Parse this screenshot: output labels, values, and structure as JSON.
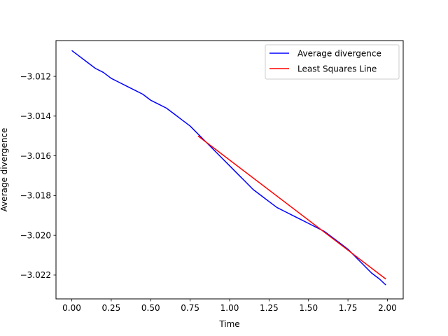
{
  "chart_data": {
    "type": "line",
    "title": "",
    "xlabel": "Time",
    "ylabel": "Average divergence",
    "xlim": [
      -0.1,
      2.1
    ],
    "ylim": [
      -3.0232,
      -3.0102
    ],
    "xticks": [
      0.0,
      0.25,
      0.5,
      0.75,
      1.0,
      1.25,
      1.5,
      1.75,
      2.0
    ],
    "xtick_labels": [
      "0.00",
      "0.25",
      "0.50",
      "0.75",
      "1.00",
      "1.25",
      "1.50",
      "1.75",
      "2.00"
    ],
    "yticks": [
      -3.022,
      -3.02,
      -3.018,
      -3.016,
      -3.014,
      -3.012
    ],
    "ytick_labels": [
      "−3.022",
      "−3.020",
      "−3.018",
      "−3.016",
      "−3.014",
      "−3.012"
    ],
    "grid": false,
    "legend": "top-right",
    "series": [
      {
        "name": "Average divergence",
        "color": "#0000ff",
        "x": [
          0.0,
          0.05,
          0.1,
          0.15,
          0.2,
          0.25,
          0.3,
          0.35,
          0.4,
          0.45,
          0.5,
          0.55,
          0.6,
          0.65,
          0.7,
          0.75,
          0.8,
          0.85,
          0.9,
          0.95,
          1.0,
          1.05,
          1.1,
          1.15,
          1.2,
          1.25,
          1.3,
          1.35,
          1.4,
          1.45,
          1.5,
          1.55,
          1.6,
          1.65,
          1.7,
          1.75,
          1.8,
          1.85,
          1.9,
          1.95,
          1.99
        ],
        "y": [
          -3.0107,
          -3.011,
          -3.0113,
          -3.0116,
          -3.0118,
          -3.0121,
          -3.0123,
          -3.0125,
          -3.0127,
          -3.0129,
          -3.0132,
          -3.0134,
          -3.0136,
          -3.0139,
          -3.0142,
          -3.0145,
          -3.0149,
          -3.0153,
          -3.0157,
          -3.0161,
          -3.0165,
          -3.0169,
          -3.0173,
          -3.0177,
          -3.018,
          -3.0183,
          -3.0186,
          -3.0188,
          -3.019,
          -3.0192,
          -3.0194,
          -3.0196,
          -3.0198,
          -3.0201,
          -3.0204,
          -3.0207,
          -3.0211,
          -3.0215,
          -3.0219,
          -3.0222,
          -3.0225
        ]
      },
      {
        "name": "Least Squares Line",
        "color": "#ff0000",
        "x": [
          0.8,
          1.99
        ],
        "y": [
          -3.015,
          -3.0222
        ]
      }
    ]
  }
}
